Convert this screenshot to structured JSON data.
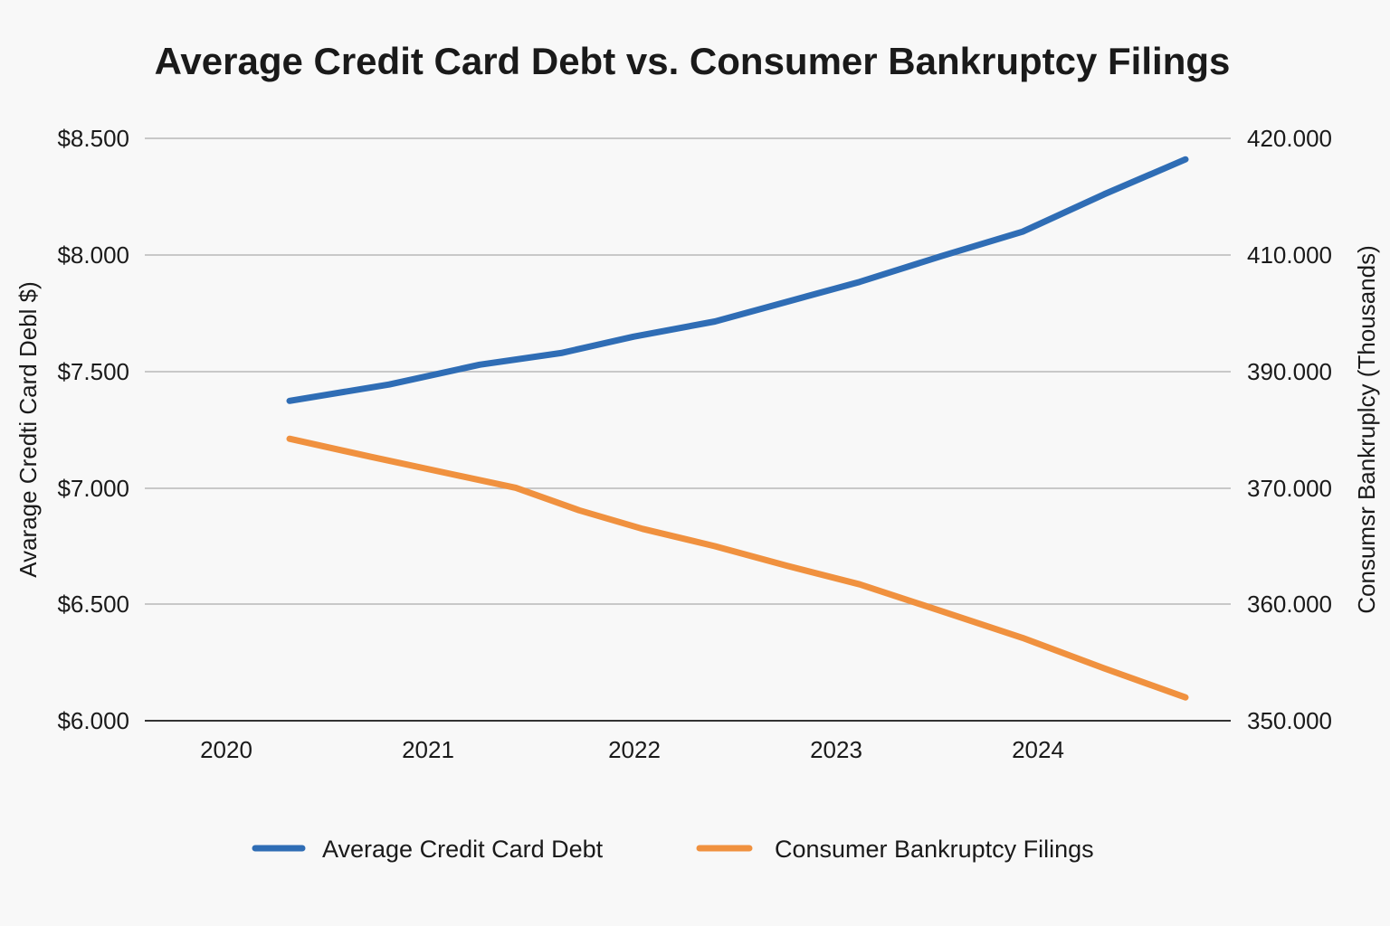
{
  "chart_data": {
    "type": "line",
    "title": "Average Credit Card Debt vs. Consumer Bankruptcy Filings",
    "x_ticks": [
      "2020",
      "2021",
      "2022",
      "2023",
      "2024"
    ],
    "left_axis": {
      "label": "Avarage Credti Card Debl $)",
      "range": [
        6000,
        8500
      ],
      "ticks": [
        6000,
        6500,
        7000,
        7500,
        8000,
        8500
      ],
      "tick_labels": [
        "$6.000",
        "$6.500",
        "$7.000",
        "$7.500",
        "$8.000",
        "$8.500"
      ]
    },
    "right_axis": {
      "label": "Consumsr Bankruplcy (Thousands)",
      "range": [
        350000,
        420000
      ],
      "ticks": [
        350000,
        360000,
        370000,
        390000,
        410000,
        420000
      ],
      "tick_labels": [
        "350.000",
        "360.000",
        "370.000",
        "390.000",
        "410.000",
        "420.000"
      ]
    },
    "grid": true,
    "legend_position": "bottom",
    "series": [
      {
        "name": "Average Credit Card Debt",
        "axis": "left",
        "color": "#2f6db5",
        "x": [
          2019.8,
          2020.35,
          2020.85,
          2021.3,
          2021.7,
          2022.15,
          2022.55,
          2022.95,
          2023.4,
          2023.85,
          2024.3,
          2024.75
        ],
        "y": [
          7375,
          7445,
          7530,
          7580,
          7650,
          7715,
          7800,
          7885,
          7995,
          8100,
          8260,
          8410
        ]
      },
      {
        "name": "Consumer Bankruptcy Filings",
        "axis": "right",
        "color": "#f0913f",
        "x": [
          2019.8,
          2020.25,
          2020.7,
          2021.05,
          2021.4,
          2021.75,
          2022.15,
          2022.55,
          2022.95,
          2023.4,
          2023.85,
          2024.3,
          2024.75
        ],
        "y": [
          378500,
          375400,
          372400,
          370100,
          368100,
          366500,
          365000,
          363300,
          361700,
          359400,
          357100,
          354500,
          352000
        ]
      }
    ]
  }
}
